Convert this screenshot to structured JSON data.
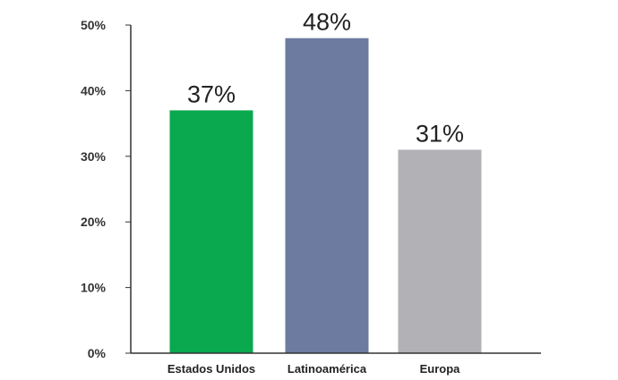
{
  "chart_data": {
    "type": "bar",
    "categories": [
      "Estados Unidos",
      "Latinoamérica",
      "Europa"
    ],
    "values": [
      37,
      48,
      31
    ],
    "data_labels": [
      "37%",
      "48%",
      "31%"
    ],
    "colors": [
      "#0aa84f",
      "#6d7ba0",
      "#b1b1b6"
    ],
    "ylim": [
      0,
      50
    ],
    "yticks": [
      0,
      10,
      20,
      30,
      40,
      50
    ],
    "ytick_labels": [
      "0%",
      "10%",
      "20%",
      "30%",
      "40%",
      "50%"
    ],
    "grid": false,
    "legend": "none"
  }
}
